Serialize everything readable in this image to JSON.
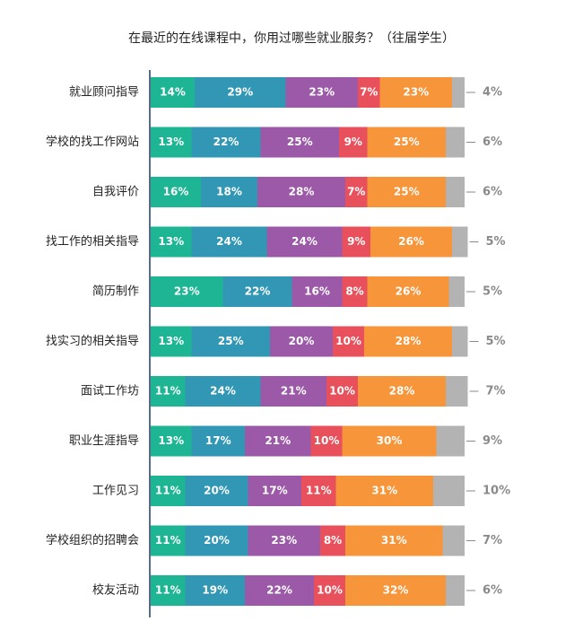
{
  "chart_data": {
    "type": "bar",
    "orientation": "horizontal",
    "stacked": true,
    "title": "在最近的在线课程中，你用过哪些就业服务？（往届学生）",
    "categories": [
      "就业顾问指导",
      "学校的找工作网站",
      "自我评价",
      "找工作的相关指导",
      "简历制作",
      "找实习的相关指导",
      "面试工作坊",
      "职业生涯指导",
      "工作见习",
      "学校组织的招聘会",
      "校友活动"
    ],
    "series": [
      {
        "name": "series-1",
        "color": "#1db594",
        "values": [
          14,
          13,
          16,
          13,
          23,
          13,
          11,
          13,
          11,
          11,
          11
        ]
      },
      {
        "name": "series-2",
        "color": "#3197b4",
        "values": [
          29,
          22,
          18,
          24,
          22,
          25,
          24,
          17,
          20,
          20,
          19
        ]
      },
      {
        "name": "series-3",
        "color": "#9b59a8",
        "values": [
          23,
          25,
          28,
          24,
          16,
          20,
          21,
          21,
          17,
          23,
          22
        ]
      },
      {
        "name": "series-4",
        "color": "#e8505b",
        "values": [
          7,
          9,
          7,
          9,
          8,
          10,
          10,
          10,
          11,
          8,
          10
        ]
      },
      {
        "name": "series-5",
        "color": "#f7953a",
        "values": [
          23,
          25,
          25,
          26,
          26,
          28,
          28,
          30,
          31,
          31,
          32
        ]
      },
      {
        "name": "series-6",
        "color": "#b3b3b3",
        "values": [
          4,
          6,
          6,
          5,
          5,
          5,
          7,
          9,
          10,
          7,
          6
        ]
      }
    ],
    "value_suffix": "%",
    "xlim": [
      0,
      100
    ],
    "legend": "none",
    "grid": false
  }
}
